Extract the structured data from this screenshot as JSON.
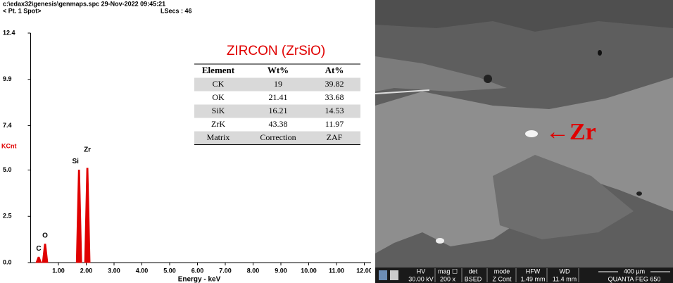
{
  "chart_data": {
    "type": "spectrum",
    "header": [
      "c:\\edax32\\genesis\\genmaps.spc 29-Nov-2022 09:45:21",
      "< Pt. 1 Spot>",
      "LSecs : 46"
    ],
    "ylabel": "KCnt",
    "xlabel": "Energy - keV",
    "color": "#e00000",
    "xlim": [
      0,
      12.1
    ],
    "ylim": [
      0,
      12.4
    ],
    "yticks": [
      {
        "value": 0,
        "label": "0.0"
      },
      2.5,
      {
        "value": 5,
        "label": "5.0"
      },
      7.4,
      9.9,
      12.4
    ],
    "xticks": [
      {
        "value": 1,
        "label": "1.00"
      },
      {
        "value": 2,
        "label": "2.00"
      },
      {
        "value": 3,
        "label": "3.00"
      },
      {
        "value": 4,
        "label": "4.00"
      },
      {
        "value": 5,
        "label": "5.00"
      },
      {
        "value": 6,
        "label": "6.00"
      },
      {
        "value": 7,
        "label": "7.00"
      },
      {
        "value": 8,
        "label": "8.00"
      },
      {
        "value": 9,
        "label": "9.00"
      },
      {
        "value": 10,
        "label": "10.00"
      },
      {
        "value": 11,
        "label": "11.00"
      },
      {
        "value": 12,
        "label": "12.00"
      }
    ],
    "peaks": [
      {
        "label": "C",
        "x": 0.29,
        "y": 0.3
      },
      {
        "label": "O",
        "x": 0.52,
        "y": 1.0
      },
      {
        "label": "Si",
        "x": 1.74,
        "y": 5.0
      },
      {
        "label": "Zr",
        "x": 2.04,
        "y": 5.1
      }
    ]
  },
  "table": {
    "title": "ZIRCON (ZrSiO)",
    "header": [
      "Element",
      "Wt%",
      "At%"
    ],
    "rows": [
      [
        "CK",
        "19",
        "39.82"
      ],
      [
        "OK",
        "21.41",
        "33.68"
      ],
      [
        "SiK",
        "16.21",
        "14.53"
      ],
      [
        "ZrK",
        "43.38",
        "11.97"
      ],
      [
        "Matrix",
        "Correction",
        "ZAF"
      ]
    ]
  },
  "sem": {
    "annotation": "←Zr",
    "labels": [
      "HV",
      "mag ☐",
      "det",
      "mode",
      "HFW",
      "WD"
    ],
    "values": [
      "30.00 kV",
      "200 x",
      "BSED",
      "Z Cont",
      "1.49 mm",
      "11.4 mm"
    ],
    "scale": "400 µm",
    "instrument": "QUANTA FEG 650"
  }
}
